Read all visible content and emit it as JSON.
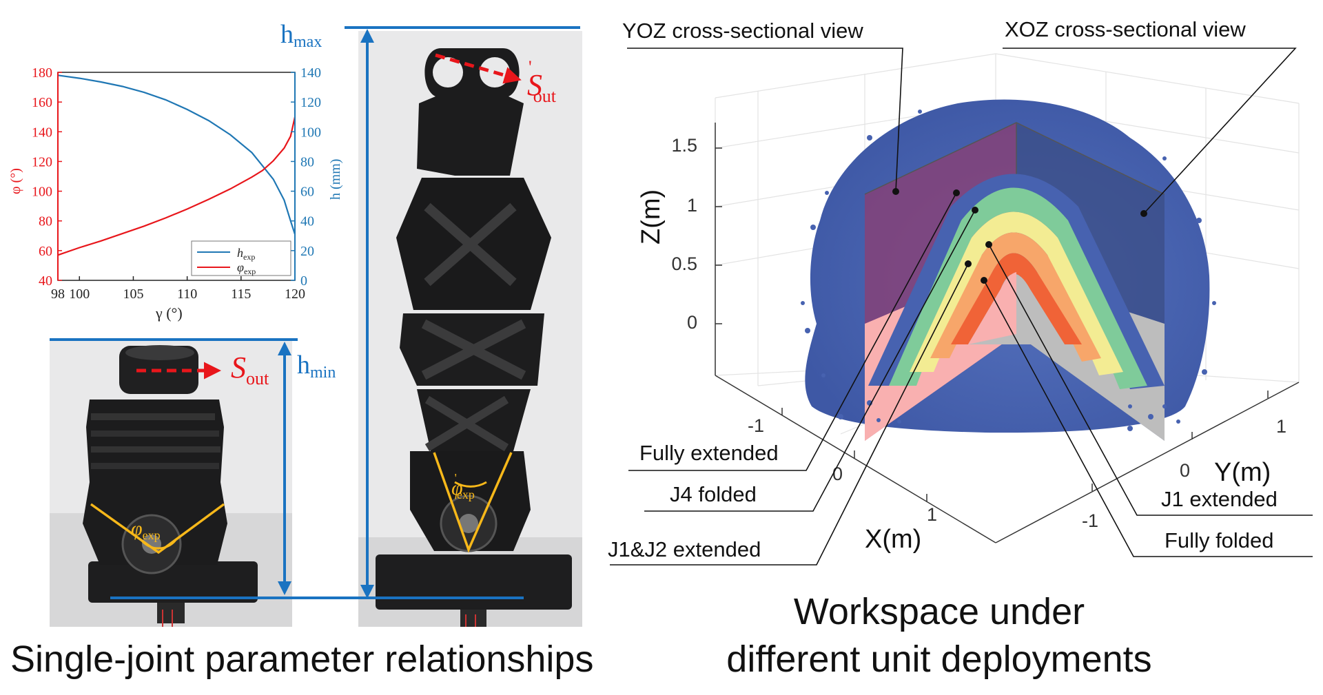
{
  "left_panel": {
    "caption": "Single-joint parameter relationships",
    "h_max": {
      "h": "h",
      "sub": "max"
    },
    "h_min": {
      "h": "h",
      "sub": "min"
    },
    "s_out": {
      "s": "S",
      "sub": "out"
    },
    "s_out_prime": {
      "s": "S",
      "prime": "'",
      "sub": "out"
    },
    "phi_exp": {
      "phi": "φ",
      "sub": "exp"
    },
    "phi_exp_prime": {
      "phi": "φ",
      "prime": "'",
      "sub": "exp"
    }
  },
  "chart_data": {
    "type": "line",
    "xlabel": "γ (°)",
    "ylabel_left": "φ (°)",
    "ylabel_right": "h (mm)",
    "xlim": [
      98,
      120
    ],
    "ylim_left": [
      40,
      180
    ],
    "ylim_right": [
      0,
      140
    ],
    "x_ticks": [
      "98",
      "100",
      "105",
      "110",
      "115",
      "120"
    ],
    "y_left_ticks": [
      "40",
      "60",
      "80",
      "100",
      "120",
      "140",
      "160",
      "180"
    ],
    "y_right_ticks": [
      "0",
      "20",
      "40",
      "60",
      "80",
      "100",
      "120",
      "140"
    ],
    "colors": {
      "h": "#1f77b4",
      "phi": "#e8161b",
      "left_axis": "#e8161b",
      "right_axis": "#1f77b4"
    },
    "series": [
      {
        "name": "h_exp",
        "label": "h",
        "sub": "exp",
        "axis": "right",
        "color": "#1f77b4",
        "x": [
          98,
          100,
          102,
          104,
          106,
          108,
          110,
          112,
          114,
          116,
          118,
          119,
          119.6,
          120
        ],
        "values": [
          138,
          136,
          133.5,
          130.5,
          126.5,
          121.5,
          115,
          107.5,
          98,
          86,
          68,
          54,
          40,
          31
        ]
      },
      {
        "name": "phi_exp",
        "label": "φ",
        "sub": "exp",
        "axis": "left",
        "color": "#e8161b",
        "x": [
          98,
          100,
          102,
          104,
          106,
          108,
          110,
          112,
          114,
          116,
          117,
          118,
          119,
          119.6,
          120
        ],
        "values": [
          57,
          62,
          66.5,
          71.5,
          76.5,
          82,
          88,
          94.5,
          101.5,
          109.5,
          114,
          120.5,
          129,
          137,
          150
        ]
      }
    ]
  },
  "right_panel": {
    "caption_line1": "Workspace under",
    "caption_line2": "different unit deployments",
    "annotations": {
      "yoz": "YOZ cross-sectional view",
      "xoz": "XOZ cross-sectional view",
      "fully_extended": "Fully extended",
      "j4_folded": "J4 folded",
      "j1j2_extended": "J1&J2 extended",
      "j1_extended": "J1 extended",
      "fully_folded": "Fully folded"
    },
    "axis_labels": {
      "z": "Z(m)",
      "y": "Y(m)",
      "x": "X(m)"
    },
    "z_ticks": [
      "1.5",
      "1",
      "0.5",
      "0"
    ],
    "x_ticks": [
      "-1",
      "0",
      "1"
    ],
    "y_ticks": [
      "1",
      "0",
      "-1"
    ],
    "colors": {
      "outer": "#4762b0",
      "green": "#7fcb9a",
      "yellow": "#f3ec93",
      "orange": "#f7a66a",
      "red": "#f06337",
      "yoz_plane": "#8a3f73",
      "xoz_plane": "#3b4d86",
      "pink": "#f9b0b0",
      "gray": "#bdbdbd"
    }
  }
}
